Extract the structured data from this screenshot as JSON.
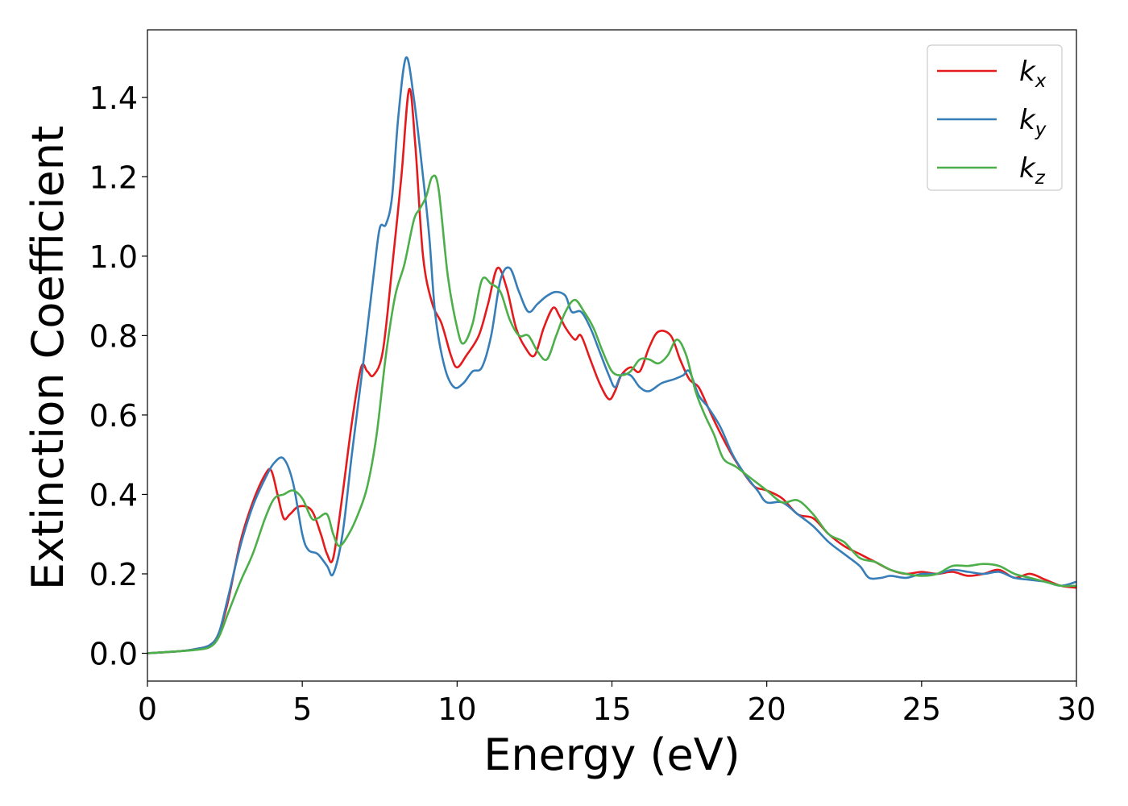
{
  "chart_data": {
    "type": "line",
    "title": "",
    "xlabel": "Energy (eV)",
    "ylabel": "Extinction Coefficient",
    "xlim": [
      0,
      30
    ],
    "ylim": [
      -0.07,
      1.57
    ],
    "xticks": [
      0,
      5,
      10,
      15,
      20,
      25,
      30
    ],
    "xtick_labels": [
      "0",
      "5",
      "10",
      "15",
      "20",
      "25",
      "30"
    ],
    "yticks": [
      0.0,
      0.2,
      0.4,
      0.6,
      0.8,
      1.0,
      1.2,
      1.4
    ],
    "ytick_labels": [
      "0.0",
      "0.2",
      "0.4",
      "0.6",
      "0.8",
      "1.0",
      "1.2",
      "1.4"
    ],
    "grid": false,
    "legend_position": "top-right",
    "series": [
      {
        "name": "k_x",
        "label_main": "k",
        "label_sub": "x",
        "color": "#e41a1c",
        "x": [
          0,
          1,
          1.5,
          2,
          2.3,
          2.6,
          3.0,
          3.4,
          3.8,
          4.0,
          4.2,
          4.4,
          4.6,
          4.9,
          5.3,
          5.6,
          5.8,
          6.0,
          6.3,
          6.6,
          6.9,
          7.1,
          7.3,
          7.6,
          7.9,
          8.2,
          8.45,
          8.65,
          8.9,
          9.2,
          9.5,
          9.8,
          10.0,
          10.3,
          10.7,
          11.0,
          11.3,
          11.6,
          11.9,
          12.2,
          12.5,
          12.8,
          13.1,
          13.3,
          13.5,
          13.8,
          14.0,
          14.3,
          14.6,
          14.9,
          15.1,
          15.3,
          15.6,
          15.9,
          16.2,
          16.5,
          16.9,
          17.2,
          17.5,
          17.8,
          18.1,
          18.4,
          18.8,
          19.2,
          19.6,
          20.0,
          20.5,
          21.0,
          21.5,
          22.0,
          22.5,
          23.0,
          23.5,
          24.0,
          24.5,
          25.0,
          25.5,
          26.0,
          26.5,
          27.0,
          27.5,
          28.0,
          28.5,
          29.0,
          29.5,
          30.0
        ],
        "y": [
          0.0,
          0.005,
          0.01,
          0.02,
          0.05,
          0.13,
          0.28,
          0.38,
          0.45,
          0.46,
          0.4,
          0.34,
          0.35,
          0.37,
          0.36,
          0.3,
          0.25,
          0.24,
          0.4,
          0.58,
          0.72,
          0.71,
          0.7,
          0.76,
          0.97,
          1.2,
          1.42,
          1.28,
          1.0,
          0.88,
          0.83,
          0.75,
          0.72,
          0.75,
          0.8,
          0.88,
          0.97,
          0.92,
          0.82,
          0.77,
          0.75,
          0.82,
          0.87,
          0.85,
          0.82,
          0.79,
          0.8,
          0.74,
          0.68,
          0.64,
          0.66,
          0.7,
          0.72,
          0.71,
          0.77,
          0.81,
          0.8,
          0.74,
          0.69,
          0.67,
          0.62,
          0.57,
          0.51,
          0.46,
          0.42,
          0.41,
          0.39,
          0.35,
          0.34,
          0.3,
          0.27,
          0.25,
          0.23,
          0.21,
          0.2,
          0.205,
          0.2,
          0.205,
          0.195,
          0.2,
          0.21,
          0.19,
          0.2,
          0.185,
          0.17,
          0.165
        ]
      },
      {
        "name": "k_y",
        "label_main": "k",
        "label_sub": "y",
        "color": "#377eb8",
        "x": [
          0,
          1,
          1.5,
          2,
          2.3,
          2.6,
          3.0,
          3.4,
          3.8,
          4.1,
          4.4,
          4.7,
          5.0,
          5.2,
          5.5,
          5.8,
          6.0,
          6.3,
          6.6,
          7.0,
          7.3,
          7.5,
          7.7,
          7.9,
          8.1,
          8.35,
          8.6,
          8.9,
          9.1,
          9.3,
          9.6,
          9.9,
          10.2,
          10.5,
          10.8,
          11.1,
          11.4,
          11.7,
          12.0,
          12.3,
          12.6,
          12.9,
          13.2,
          13.5,
          13.7,
          14.0,
          14.3,
          14.6,
          14.9,
          15.1,
          15.3,
          15.6,
          15.9,
          16.2,
          16.6,
          17.0,
          17.3,
          17.5,
          17.8,
          18.1,
          18.5,
          18.9,
          19.3,
          19.7,
          20.0,
          20.5,
          21.0,
          21.5,
          22.0,
          22.5,
          23.0,
          23.3,
          23.7,
          24.0,
          24.5,
          25.0,
          25.5,
          26.0,
          26.5,
          27.0,
          27.5,
          28.0,
          28.5,
          29.0,
          29.5,
          30.0
        ],
        "y": [
          0.0,
          0.005,
          0.01,
          0.02,
          0.05,
          0.14,
          0.27,
          0.37,
          0.44,
          0.48,
          0.49,
          0.43,
          0.3,
          0.26,
          0.25,
          0.22,
          0.2,
          0.3,
          0.5,
          0.75,
          0.95,
          1.07,
          1.08,
          1.15,
          1.35,
          1.5,
          1.4,
          1.2,
          1.05,
          0.85,
          0.72,
          0.67,
          0.68,
          0.71,
          0.72,
          0.8,
          0.94,
          0.97,
          0.91,
          0.86,
          0.88,
          0.9,
          0.91,
          0.9,
          0.86,
          0.86,
          0.82,
          0.76,
          0.7,
          0.67,
          0.7,
          0.7,
          0.67,
          0.66,
          0.68,
          0.69,
          0.7,
          0.71,
          0.65,
          0.62,
          0.57,
          0.5,
          0.45,
          0.41,
          0.38,
          0.38,
          0.35,
          0.32,
          0.28,
          0.25,
          0.22,
          0.19,
          0.19,
          0.195,
          0.19,
          0.2,
          0.2,
          0.21,
          0.205,
          0.2,
          0.205,
          0.19,
          0.185,
          0.18,
          0.17,
          0.18
        ]
      },
      {
        "name": "k_z",
        "label_main": "k",
        "label_sub": "z",
        "color": "#4daf4a",
        "x": [
          0,
          1,
          1.5,
          2,
          2.3,
          2.6,
          3.0,
          3.4,
          3.8,
          4.1,
          4.4,
          4.7,
          5.0,
          5.3,
          5.5,
          5.8,
          6.0,
          6.2,
          6.5,
          6.8,
          7.1,
          7.4,
          7.7,
          8.0,
          8.3,
          8.6,
          8.8,
          9.0,
          9.2,
          9.4,
          9.7,
          10.0,
          10.2,
          10.5,
          10.8,
          11.1,
          11.4,
          11.7,
          12.0,
          12.3,
          12.6,
          12.9,
          13.2,
          13.5,
          13.8,
          14.1,
          14.4,
          14.7,
          15.0,
          15.3,
          15.6,
          15.9,
          16.2,
          16.5,
          16.8,
          17.1,
          17.4,
          17.7,
          18.0,
          18.3,
          18.6,
          19.0,
          19.5,
          20.0,
          20.5,
          21.0,
          21.5,
          22.0,
          22.5,
          23.0,
          23.5,
          24.0,
          24.5,
          25.0,
          25.5,
          26.0,
          26.5,
          27.0,
          27.5,
          28.0,
          28.5,
          29.0,
          29.5,
          30.0
        ],
        "y": [
          0.0,
          0.005,
          0.008,
          0.015,
          0.04,
          0.1,
          0.18,
          0.25,
          0.34,
          0.39,
          0.4,
          0.41,
          0.39,
          0.34,
          0.34,
          0.35,
          0.3,
          0.27,
          0.3,
          0.35,
          0.42,
          0.55,
          0.75,
          0.9,
          0.98,
          1.09,
          1.12,
          1.15,
          1.2,
          1.17,
          0.95,
          0.82,
          0.78,
          0.83,
          0.94,
          0.93,
          0.91,
          0.84,
          0.8,
          0.8,
          0.76,
          0.74,
          0.8,
          0.86,
          0.89,
          0.86,
          0.82,
          0.76,
          0.71,
          0.7,
          0.71,
          0.74,
          0.74,
          0.73,
          0.75,
          0.79,
          0.75,
          0.66,
          0.6,
          0.55,
          0.49,
          0.47,
          0.44,
          0.41,
          0.38,
          0.385,
          0.35,
          0.3,
          0.28,
          0.24,
          0.23,
          0.21,
          0.2,
          0.195,
          0.2,
          0.22,
          0.22,
          0.225,
          0.22,
          0.2,
          0.19,
          0.18,
          0.17,
          0.17
        ]
      }
    ]
  }
}
